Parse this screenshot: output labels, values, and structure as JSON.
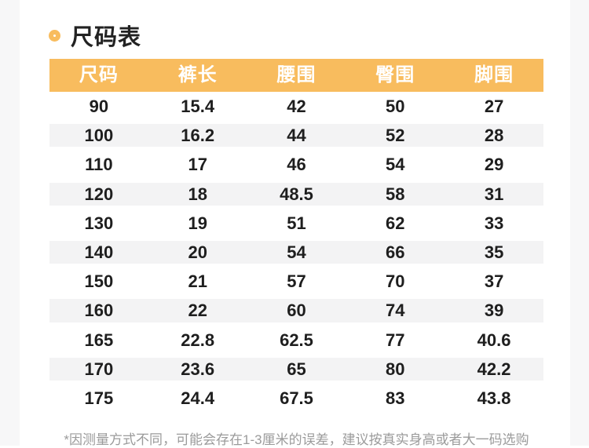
{
  "page": {
    "title": "尺码表",
    "footnote": "*因测量方式不同，可能会存在1-3厘米的误差，建议按真实身高或者大一码选购"
  },
  "icons": {
    "title_bullet": "ring-icon"
  },
  "colors": {
    "accent": "#F8BC5E",
    "stripe": "#F3F3F4",
    "header_text": "#FFFFFF",
    "body_text": "#1E1E1E",
    "footnote_text": "#9B9B9B",
    "page_background": "#F7F7F8"
  },
  "chart_data": {
    "type": "table",
    "title": "尺码表",
    "columns": [
      "尺码",
      "裤长",
      "腰围",
      "臀围",
      "脚围"
    ],
    "rows": [
      [
        "90",
        "15.4",
        "42",
        "50",
        "27"
      ],
      [
        "100",
        "16.2",
        "44",
        "52",
        "28"
      ],
      [
        "110",
        "17",
        "46",
        "54",
        "29"
      ],
      [
        "120",
        "18",
        "48.5",
        "58",
        "31"
      ],
      [
        "130",
        "19",
        "51",
        "62",
        "33"
      ],
      [
        "140",
        "20",
        "54",
        "66",
        "35"
      ],
      [
        "150",
        "21",
        "57",
        "70",
        "37"
      ],
      [
        "160",
        "22",
        "60",
        "74",
        "39"
      ],
      [
        "165",
        "22.8",
        "62.5",
        "77",
        "40.6"
      ],
      [
        "170",
        "23.6",
        "65",
        "80",
        "42.2"
      ],
      [
        "175",
        "24.4",
        "67.5",
        "83",
        "43.8"
      ]
    ],
    "layout": {
      "striped_rows": "even",
      "header_background": "#F8BC5E",
      "grid": false
    }
  }
}
